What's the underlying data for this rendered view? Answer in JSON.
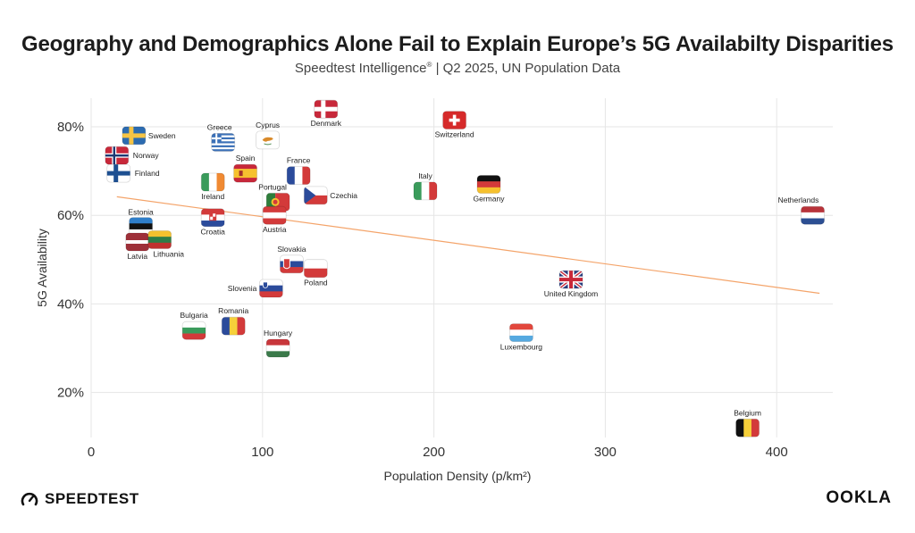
{
  "header": {
    "title": "Geography and Demographics Alone Fail to Explain Europe’s 5G Availabilty Disparities",
    "subtitle_brand": "Speedtest Intelligence",
    "subtitle_mark": "®",
    "subtitle_rest": " | Q2 2025, UN Population Data"
  },
  "branding": {
    "left_logo": "SPEEDTEST",
    "right_logo": "OOKLA"
  },
  "chart_data": {
    "type": "scatter",
    "title": "Geography and Demographics Alone Fail to Explain Europe’s 5G Availabilty Disparities",
    "xlabel": "Population Density (p/km²)",
    "ylabel": "5G Availability",
    "xlim": [
      0,
      430
    ],
    "ylim": [
      11,
      85
    ],
    "x_ticks": [
      0,
      100,
      200,
      300,
      400
    ],
    "x_tick_labels": [
      "0",
      "100",
      "200",
      "300",
      "400"
    ],
    "y_ticks": [
      20,
      40,
      60,
      80
    ],
    "y_tick_labels": [
      "20%",
      "40%",
      "60%",
      "80%"
    ],
    "grid": true,
    "trendline": {
      "x": [
        15,
        425
      ],
      "y": [
        64.2,
        42.4
      ],
      "color": "#f4a46a"
    },
    "points": [
      {
        "label": "Sweden",
        "x": 25,
        "y": 78,
        "flag": "sweden"
      },
      {
        "label": "Norway",
        "x": 15,
        "y": 73.5,
        "flag": "norway"
      },
      {
        "label": "Finland",
        "x": 16,
        "y": 69.5,
        "flag": "finland"
      },
      {
        "label": "Estonia",
        "x": 29,
        "y": 57.5,
        "flag": "estonia"
      },
      {
        "label": "Latvia",
        "x": 27,
        "y": 54,
        "flag": "latvia"
      },
      {
        "label": "Lithuania",
        "x": 40,
        "y": 54.5,
        "flag": "lithuania"
      },
      {
        "label": "Ireland",
        "x": 71,
        "y": 67.5,
        "flag": "ireland"
      },
      {
        "label": "Croatia",
        "x": 71,
        "y": 59.5,
        "flag": "croatia"
      },
      {
        "label": "Greece",
        "x": 77,
        "y": 76.5,
        "flag": "greece"
      },
      {
        "label": "Cyprus",
        "x": 103,
        "y": 77,
        "flag": "cyprus"
      },
      {
        "label": "Spain",
        "x": 90,
        "y": 69.5,
        "flag": "spain"
      },
      {
        "label": "Portugal",
        "x": 109,
        "y": 63,
        "flag": "portugal"
      },
      {
        "label": "Austria",
        "x": 107,
        "y": 60,
        "flag": "austria"
      },
      {
        "label": "France",
        "x": 121,
        "y": 69,
        "flag": "france"
      },
      {
        "label": "Czechia",
        "x": 131,
        "y": 64.5,
        "flag": "czechia"
      },
      {
        "label": "Denmark",
        "x": 137,
        "y": 84,
        "flag": "denmark"
      },
      {
        "label": "Switzerland",
        "x": 212,
        "y": 81.5,
        "flag": "switzerland"
      },
      {
        "label": "Italy",
        "x": 195,
        "y": 65.5,
        "flag": "italy"
      },
      {
        "label": "Germany",
        "x": 232,
        "y": 67,
        "flag": "germany"
      },
      {
        "label": "Netherlands",
        "x": 421,
        "y": 60,
        "flag": "netherlands"
      },
      {
        "label": "Slovakia",
        "x": 117,
        "y": 49,
        "flag": "slovakia"
      },
      {
        "label": "Poland",
        "x": 131,
        "y": 48,
        "flag": "poland"
      },
      {
        "label": "Slovenia",
        "x": 105,
        "y": 43.5,
        "flag": "slovenia"
      },
      {
        "label": "Bulgaria",
        "x": 60,
        "y": 34,
        "flag": "bulgaria"
      },
      {
        "label": "Romania",
        "x": 83,
        "y": 35,
        "flag": "romania"
      },
      {
        "label": "Hungary",
        "x": 109,
        "y": 30,
        "flag": "hungary"
      },
      {
        "label": "United Kingdom",
        "x": 280,
        "y": 45.5,
        "flag": "united-kingdom"
      },
      {
        "label": "Luxembourg",
        "x": 251,
        "y": 33.5,
        "flag": "luxembourg"
      },
      {
        "label": "Belgium",
        "x": 383,
        "y": 12,
        "flag": "belgium"
      }
    ]
  }
}
